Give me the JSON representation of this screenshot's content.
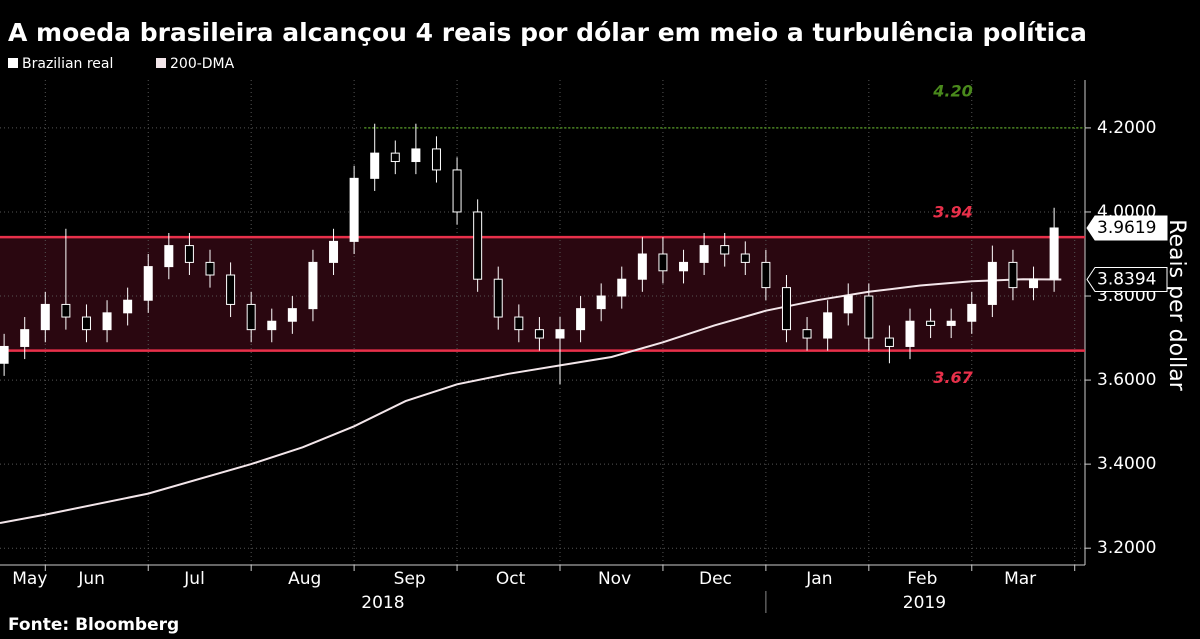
{
  "chart_data": {
    "type": "candlestick",
    "title": "A moeda brasileira alcançou 4 reais por dólar em meio a turbulência política",
    "source": "Fonte: Bloomberg",
    "y_label": "Reais per dollar",
    "series": [
      {
        "name": "Brazilian real",
        "color": "#ffffff",
        "x": [
          5.6,
          5.8,
          6.0,
          6.2,
          6.4,
          6.6,
          6.8,
          7.0,
          7.2,
          7.4,
          7.6,
          7.8,
          8.0,
          8.2,
          8.4,
          8.6,
          8.8,
          9.0,
          9.2,
          9.4,
          9.6,
          9.8,
          10.0,
          10.2,
          10.4,
          10.6,
          10.8,
          11.0,
          11.2,
          11.4,
          11.6,
          11.8,
          12.0,
          12.2,
          12.4,
          12.6,
          12.8,
          13.0,
          13.2,
          13.4,
          13.6,
          13.8,
          14.0,
          14.2,
          14.4,
          14.6,
          14.8,
          15.0,
          15.2,
          15.4,
          15.6,
          15.8
        ],
        "open": [
          3.64,
          3.68,
          3.72,
          3.78,
          3.75,
          3.72,
          3.76,
          3.79,
          3.87,
          3.92,
          3.88,
          3.85,
          3.78,
          3.72,
          3.74,
          3.77,
          3.88,
          3.93,
          4.08,
          4.14,
          4.12,
          4.15,
          4.1,
          4.0,
          3.84,
          3.75,
          3.72,
          3.7,
          3.72,
          3.77,
          3.8,
          3.84,
          3.9,
          3.86,
          3.88,
          3.92,
          3.9,
          3.88,
          3.82,
          3.72,
          3.7,
          3.76,
          3.8,
          3.7,
          3.68,
          3.74,
          3.73,
          3.74,
          3.78,
          3.88,
          3.82,
          3.84
        ],
        "high": [
          3.71,
          3.75,
          3.81,
          3.96,
          3.78,
          3.79,
          3.82,
          3.9,
          3.95,
          3.95,
          3.91,
          3.88,
          3.81,
          3.77,
          3.8,
          3.91,
          3.96,
          4.11,
          4.21,
          4.17,
          4.21,
          4.18,
          4.13,
          4.03,
          3.87,
          3.78,
          3.75,
          3.75,
          3.8,
          3.83,
          3.87,
          3.94,
          3.94,
          3.91,
          3.95,
          3.95,
          3.93,
          3.91,
          3.85,
          3.75,
          3.79,
          3.83,
          3.83,
          3.73,
          3.77,
          3.77,
          3.77,
          3.81,
          3.92,
          3.91,
          3.87,
          4.01
        ],
        "low": [
          3.61,
          3.65,
          3.69,
          3.72,
          3.69,
          3.69,
          3.73,
          3.76,
          3.84,
          3.85,
          3.82,
          3.75,
          3.69,
          3.69,
          3.71,
          3.74,
          3.85,
          3.9,
          4.05,
          4.09,
          4.09,
          4.07,
          3.97,
          3.81,
          3.72,
          3.69,
          3.67,
          3.59,
          3.69,
          3.74,
          3.77,
          3.81,
          3.83,
          3.83,
          3.85,
          3.87,
          3.85,
          3.79,
          3.69,
          3.67,
          3.67,
          3.73,
          3.67,
          3.64,
          3.65,
          3.7,
          3.7,
          3.71,
          3.75,
          3.79,
          3.79,
          3.81
        ],
        "close": [
          3.68,
          3.72,
          3.78,
          3.75,
          3.72,
          3.76,
          3.79,
          3.87,
          3.92,
          3.88,
          3.85,
          3.78,
          3.72,
          3.74,
          3.77,
          3.88,
          3.93,
          4.08,
          4.14,
          4.12,
          4.15,
          4.1,
          4.0,
          3.84,
          3.75,
          3.72,
          3.7,
          3.72,
          3.77,
          3.8,
          3.84,
          3.9,
          3.86,
          3.88,
          3.92,
          3.9,
          3.88,
          3.82,
          3.72,
          3.7,
          3.76,
          3.8,
          3.7,
          3.68,
          3.74,
          3.73,
          3.74,
          3.78,
          3.88,
          3.82,
          3.84,
          3.9619
        ]
      },
      {
        "name": "200-DMA",
        "color": "#f3e6ea",
        "x": [
          5.56,
          6,
          7,
          8,
          8.5,
          9,
          9.5,
          10,
          10.5,
          11,
          11.5,
          12,
          12.5,
          13,
          13.5,
          14,
          14.5,
          15,
          15.5,
          15.87
        ],
        "values": [
          3.26,
          3.28,
          3.33,
          3.4,
          3.44,
          3.49,
          3.55,
          3.59,
          3.615,
          3.635,
          3.655,
          3.69,
          3.73,
          3.765,
          3.79,
          3.81,
          3.825,
          3.835,
          3.84,
          3.8394
        ]
      }
    ],
    "levels": [
      {
        "value": 4.2,
        "label": "4.20",
        "color": "#4a8a1c"
      },
      {
        "value": 3.94,
        "label": "3.94",
        "color": "#e8304a"
      },
      {
        "value": 3.67,
        "label": "3.67",
        "color": "#e8304a"
      }
    ],
    "band_fill": "#2a0710",
    "xlim": [
      5.56,
      16.1
    ],
    "ylim": [
      3.16,
      4.314
    ],
    "yticks": [
      {
        "value": 3.2,
        "label": "3.2000"
      },
      {
        "value": 3.4,
        "label": "3.4000"
      },
      {
        "value": 3.6,
        "label": "3.6000"
      },
      {
        "value": 3.8,
        "label": "3.8000"
      },
      {
        "value": 4.0,
        "label": "4.0000"
      },
      {
        "value": 4.2,
        "label": "4.2000"
      }
    ],
    "xticks": [
      {
        "value": 5.85,
        "label": "May"
      },
      {
        "value": 6.45,
        "label": "Jun"
      },
      {
        "value": 7.45,
        "label": "Jul"
      },
      {
        "value": 8.52,
        "label": "Aug"
      },
      {
        "value": 9.54,
        "label": "Sep"
      },
      {
        "value": 10.52,
        "label": "Oct"
      },
      {
        "value": 11.53,
        "label": "Nov"
      },
      {
        "value": 12.51,
        "label": "Dec"
      },
      {
        "value": 13.52,
        "label": "Jan"
      },
      {
        "value": 14.52,
        "label": "Feb"
      },
      {
        "value": 15.47,
        "label": "Mar"
      }
    ],
    "xgrid": [
      6,
      7,
      8,
      9,
      10,
      11,
      12,
      13,
      14,
      15,
      16
    ],
    "years": [
      {
        "value": 9.28,
        "label": "2018"
      },
      {
        "value": 14.54,
        "label": "2019"
      }
    ],
    "year_break": 13
  }
}
